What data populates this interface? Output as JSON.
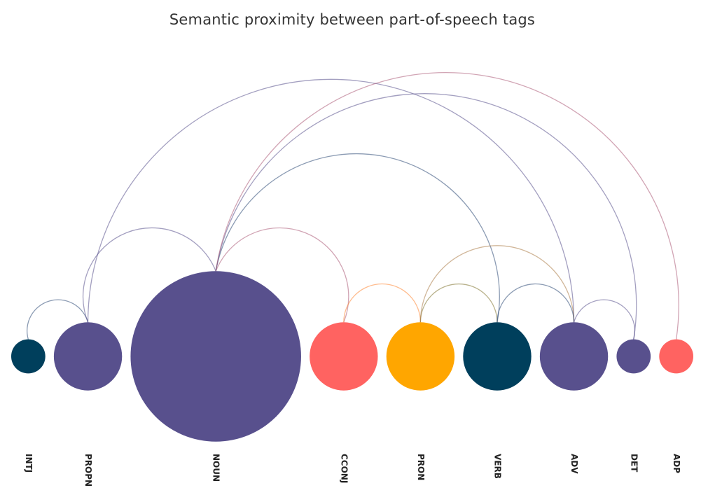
{
  "chart_data": {
    "type": "arc",
    "title": "Semantic proximity between part-of-speech tags",
    "nodes": [
      {
        "id": "INTJ",
        "label": "INTJ",
        "size": 1,
        "color": "#003f5c"
      },
      {
        "id": "PROPN",
        "label": "PROPN",
        "size": 4,
        "color": "#58508d"
      },
      {
        "id": "NOUN",
        "label": "NOUN",
        "size": 25,
        "color": "#58508d"
      },
      {
        "id": "CCONJ",
        "label": "CCONJ",
        "size": 4,
        "color": "#ff6361"
      },
      {
        "id": "PRON",
        "label": "PRON",
        "size": 4,
        "color": "#ffa600"
      },
      {
        "id": "VERB",
        "label": "VERB",
        "size": 4,
        "color": "#003f5c"
      },
      {
        "id": "ADV",
        "label": "ADV",
        "size": 4,
        "color": "#58508d"
      },
      {
        "id": "DET",
        "label": "DET",
        "size": 1,
        "color": "#58508d"
      },
      {
        "id": "ADP",
        "label": "ADP",
        "size": 1,
        "color": "#ff6361"
      }
    ],
    "links": [
      {
        "source": "INTJ",
        "target": "PROPN"
      },
      {
        "source": "PROPN",
        "target": "NOUN"
      },
      {
        "source": "PROPN",
        "target": "ADV"
      },
      {
        "source": "NOUN",
        "target": "CCONJ"
      },
      {
        "source": "NOUN",
        "target": "VERB"
      },
      {
        "source": "NOUN",
        "target": "DET"
      },
      {
        "source": "NOUN",
        "target": "ADP"
      },
      {
        "source": "CCONJ",
        "target": "PRON"
      },
      {
        "source": "PRON",
        "target": "VERB"
      },
      {
        "source": "PRON",
        "target": "ADV"
      },
      {
        "source": "VERB",
        "target": "ADV"
      },
      {
        "source": "ADV",
        "target": "DET"
      }
    ]
  }
}
